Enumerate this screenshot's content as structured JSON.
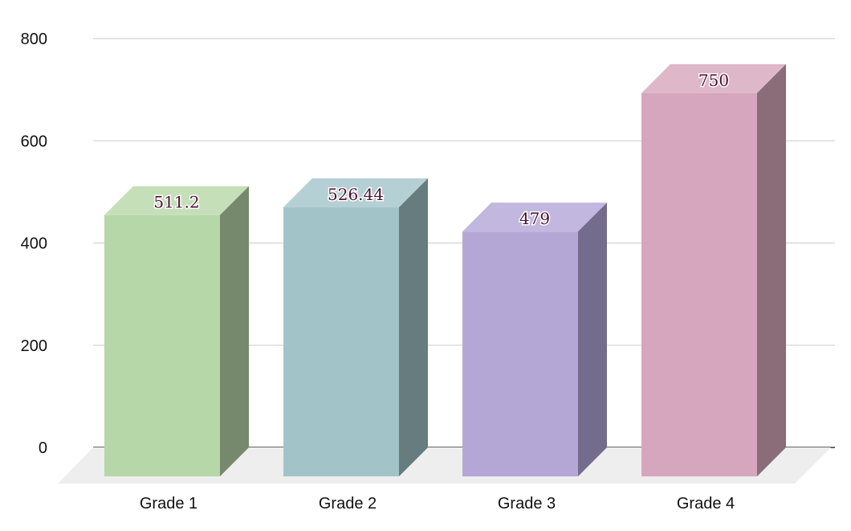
{
  "chart_data": {
    "type": "bar",
    "style": "3d",
    "title": "",
    "xlabel": "",
    "ylabel": "",
    "categories": [
      "Grade 1",
      "Grade 2",
      "Grade 3",
      "Grade 4"
    ],
    "values": [
      511.2,
      526.44,
      479,
      750
    ],
    "value_labels": [
      "511.2",
      "526.44",
      "479",
      "750"
    ],
    "ylim": [
      0,
      800
    ],
    "yticks": [
      "0",
      "200",
      "400",
      "600",
      "800"
    ],
    "grid": true,
    "legend": "none",
    "colors": {
      "front": [
        "#b6d7a8",
        "#a2c4c9",
        "#b4a7d6",
        "#d5a6bd"
      ],
      "top": [
        "#c5e0b9",
        "#b5d0d4",
        "#c2b7df",
        "#deb7c9"
      ],
      "side": [
        "#76896c",
        "#677c7f",
        "#746c8c",
        "#8b6c79"
      ],
      "label": "#4a1030",
      "grid": "#cccccc",
      "axis": "#333333",
      "floor": "#eeeeee"
    }
  }
}
